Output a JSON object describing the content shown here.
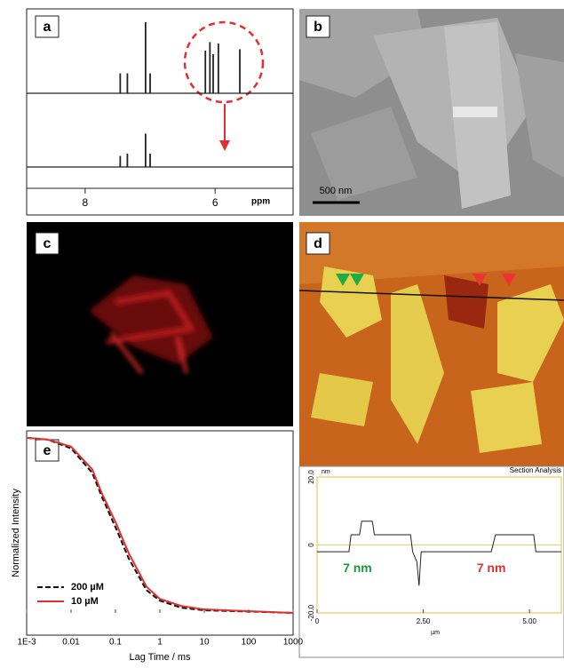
{
  "panels": [
    {
      "label": "a"
    },
    {
      "label": "b"
    },
    {
      "label": "c"
    },
    {
      "label": "d"
    },
    {
      "label": "e"
    }
  ],
  "scale_bar": "500 nm",
  "chart_data": [
    {
      "type": "stick",
      "xlabel": "ppm",
      "xlim": [
        8.9,
        4.8
      ],
      "xticks": [
        8,
        6
      ],
      "x": [
        7.46,
        7.35,
        7.07,
        7.0,
        6.15,
        6.08,
        6.03,
        5.95,
        5.62
      ],
      "series": [
        {
          "name": null,
          "color": "#222222",
          "values": [
            28,
            28,
            100,
            28,
            60,
            72,
            55,
            70,
            62
          ]
        },
        {
          "name": null,
          "color": "#222222",
          "values": [
            25,
            30,
            75,
            30,
            null,
            null,
            null,
            null,
            null
          ]
        }
      ]
    },
    {
      "type": "line",
      "title": "Section Analysis",
      "ylabel": "nm",
      "xlabel": "µm",
      "xlim": [
        0,
        5.75
      ],
      "ylim": [
        -20,
        20
      ],
      "xticks": [
        0,
        {
          "value": 2.5,
          "label": "2.50"
        },
        {
          "value": 5,
          "label": "5.00"
        }
      ],
      "yticks": [
        {
          "value": 20,
          "label": "20.0"
        },
        0,
        {
          "value": -20,
          "label": "-20.0"
        }
      ],
      "annotations": [
        {
          "text": "7 nm",
          "x": 0.95,
          "y": -7,
          "color": "#1a9a3a"
        },
        {
          "text": "7 nm",
          "x": 4.1,
          "y": -7,
          "color": "#e03030"
        }
      ],
      "x": [
        0,
        0.75,
        0.8,
        1.0,
        1.05,
        1.3,
        1.35,
        2.2,
        2.25,
        2.35,
        2.4,
        2.45,
        2.6,
        4.1,
        4.2,
        5.1,
        5.15,
        5.75
      ],
      "series": [
        {
          "name": null,
          "color": "#222222",
          "values": [
            -2,
            -2,
            3,
            3,
            7,
            7,
            3,
            3,
            -2,
            -5,
            -12,
            -2,
            -2,
            -2,
            3,
            3,
            -2,
            -2
          ]
        }
      ]
    },
    {
      "type": "line",
      "xlog": true,
      "xlabel": "Lag Time / ms",
      "ylabel": "Normalized Intensity",
      "xlim": [
        0.001,
        1000
      ],
      "ylim": [
        0,
        1.03
      ],
      "xticks": [
        {
          "value": 0.001,
          "label": "1E-3"
        },
        0.01,
        0.1,
        1,
        10,
        100,
        1000
      ],
      "legend": "lower-left",
      "x": [
        0.001,
        0.003,
        0.01,
        0.03,
        0.05,
        0.1,
        0.2,
        0.5,
        1,
        3,
        10,
        100,
        1000
      ],
      "series": [
        {
          "name": "200 µM",
          "color": "#111111",
          "dash": true,
          "values": [
            1,
            0.99,
            0.94,
            0.8,
            0.66,
            0.49,
            0.31,
            0.13,
            0.07,
            0.03,
            0.015,
            0.008,
            0
          ]
        },
        {
          "name": "10 µM",
          "color": "#e03030",
          "dash": false,
          "values": [
            1,
            0.99,
            0.95,
            0.82,
            0.68,
            0.52,
            0.34,
            0.15,
            0.08,
            0.04,
            0.02,
            0.01,
            0
          ]
        }
      ]
    }
  ]
}
